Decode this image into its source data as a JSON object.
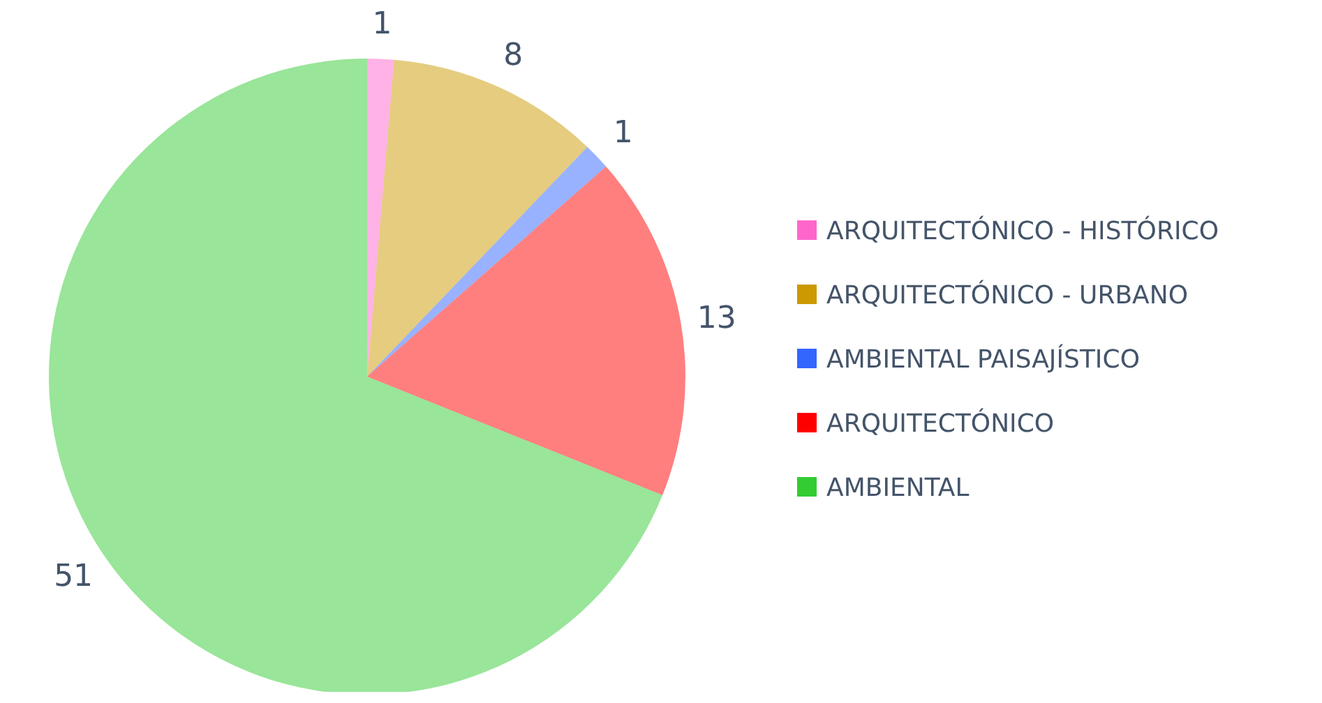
{
  "chart_data": {
    "type": "pie",
    "categories": [
      "ARQUITECTÓNICO - HISTÓRICO",
      "ARQUITECTÓNICO - URBANO",
      "AMBIENTAL PAISAJÍSTICO",
      "ARQUITECTÓNICO",
      "AMBIENTAL"
    ],
    "values": [
      1,
      8,
      1,
      13,
      51
    ],
    "colors": [
      "#ff66cc",
      "#cc9900",
      "#3366ff",
      "#ff0000",
      "#33cc33"
    ],
    "data_labels": true,
    "legend": "right"
  }
}
